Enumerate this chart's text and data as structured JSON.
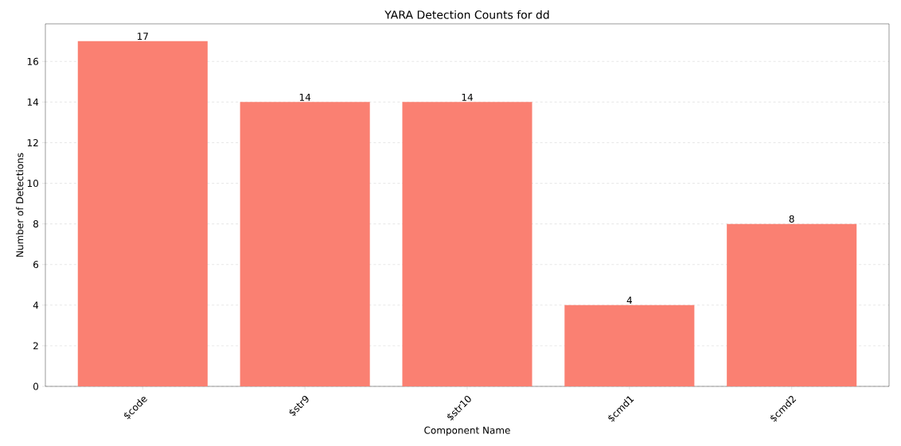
{
  "chart_data": {
    "type": "bar",
    "title": "YARA Detection Counts for dd",
    "xlabel": "Component Name",
    "ylabel": "Number of Detections",
    "categories": [
      "$code",
      "$str9",
      "$str10",
      "$cmd1",
      "$cmd2"
    ],
    "values": [
      17,
      14,
      14,
      4,
      8
    ],
    "color": "#fa8072",
    "data_labels": true,
    "ylim": [
      0,
      17.85
    ],
    "yticks": [
      0,
      2,
      4,
      6,
      8,
      10,
      12,
      14,
      16
    ],
    "grid": "y"
  }
}
